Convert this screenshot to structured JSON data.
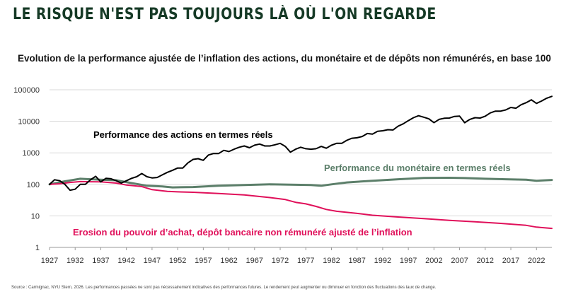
{
  "headline": "LE RISQUE N'EST PAS TOUJOURS LÀ OÙ L'ON REGARDE",
  "subtitle": "Evolution de la performance ajustée de l’inflation des actions, du monétaire et de dépôts non rémunérés, en base 100",
  "source": "Source : Carmignac, NYU Stern, 2026. Les performances passées ne sont pas nécessairement indicatives des performances futures. Le rendement peut augmenter ou diminuer en fonction des fluctuations des taux de change.",
  "chart_data": {
    "type": "line",
    "y_scale": "log",
    "ylim": [
      1,
      100000
    ],
    "y_ticks": [
      "1",
      "10",
      "100",
      "1000",
      "10000",
      "100000"
    ],
    "x_ticks": [
      "1927",
      "1932",
      "1937",
      "1942",
      "1947",
      "1952",
      "1957",
      "1962",
      "1967",
      "1972",
      "1977",
      "1982",
      "1987",
      "1992",
      "1997",
      "2002",
      "2007",
      "2012",
      "2017",
      "2022"
    ],
    "xlim": [
      1927,
      2025
    ],
    "grid": true,
    "series": [
      {
        "name": "Performance des actions en termes réels",
        "color": "#000000",
        "points": [
          [
            1927,
            100
          ],
          [
            1928,
            140
          ],
          [
            1929,
            130
          ],
          [
            1930,
            100
          ],
          [
            1931,
            65
          ],
          [
            1932,
            70
          ],
          [
            1933,
            100
          ],
          [
            1934,
            100
          ],
          [
            1935,
            140
          ],
          [
            1936,
            180
          ],
          [
            1937,
            120
          ],
          [
            1938,
            155
          ],
          [
            1939,
            150
          ],
          [
            1940,
            130
          ],
          [
            1941,
            110
          ],
          [
            1942,
            130
          ],
          [
            1943,
            155
          ],
          [
            1944,
            175
          ],
          [
            1945,
            220
          ],
          [
            1946,
            175
          ],
          [
            1947,
            160
          ],
          [
            1948,
            165
          ],
          [
            1949,
            200
          ],
          [
            1950,
            240
          ],
          [
            1951,
            280
          ],
          [
            1952,
            330
          ],
          [
            1953,
            330
          ],
          [
            1954,
            480
          ],
          [
            1955,
            620
          ],
          [
            1956,
            650
          ],
          [
            1957,
            580
          ],
          [
            1958,
            850
          ],
          [
            1959,
            950
          ],
          [
            1960,
            950
          ],
          [
            1961,
            1200
          ],
          [
            1962,
            1100
          ],
          [
            1963,
            1300
          ],
          [
            1964,
            1500
          ],
          [
            1965,
            1650
          ],
          [
            1966,
            1450
          ],
          [
            1967,
            1750
          ],
          [
            1968,
            1900
          ],
          [
            1969,
            1650
          ],
          [
            1970,
            1650
          ],
          [
            1971,
            1800
          ],
          [
            1972,
            2000
          ],
          [
            1973,
            1600
          ],
          [
            1974,
            1050
          ],
          [
            1975,
            1300
          ],
          [
            1976,
            1500
          ],
          [
            1977,
            1350
          ],
          [
            1978,
            1300
          ],
          [
            1979,
            1350
          ],
          [
            1980,
            1600
          ],
          [
            1981,
            1400
          ],
          [
            1982,
            1750
          ],
          [
            1983,
            2000
          ],
          [
            1984,
            2000
          ],
          [
            1985,
            2500
          ],
          [
            1986,
            2900
          ],
          [
            1987,
            3000
          ],
          [
            1988,
            3300
          ],
          [
            1989,
            4100
          ],
          [
            1990,
            3900
          ],
          [
            1991,
            4800
          ],
          [
            1992,
            5000
          ],
          [
            1993,
            5400
          ],
          [
            1994,
            5300
          ],
          [
            1995,
            7000
          ],
          [
            1996,
            8300
          ],
          [
            1997,
            10500
          ],
          [
            1998,
            13000
          ],
          [
            1999,
            15000
          ],
          [
            2000,
            13500
          ],
          [
            2001,
            12000
          ],
          [
            2002,
            9000
          ],
          [
            2003,
            11500
          ],
          [
            2004,
            12500
          ],
          [
            2005,
            12700
          ],
          [
            2006,
            14300
          ],
          [
            2007,
            14600
          ],
          [
            2008,
            9000
          ],
          [
            2009,
            11500
          ],
          [
            2010,
            13000
          ],
          [
            2011,
            12700
          ],
          [
            2012,
            14500
          ],
          [
            2013,
            18500
          ],
          [
            2014,
            21000
          ],
          [
            2015,
            21000
          ],
          [
            2016,
            23000
          ],
          [
            2017,
            27500
          ],
          [
            2018,
            26000
          ],
          [
            2019,
            33500
          ],
          [
            2020,
            39000
          ],
          [
            2021,
            48000
          ],
          [
            2022,
            37000
          ],
          [
            2023,
            44000
          ],
          [
            2024,
            54000
          ],
          [
            2025,
            62000
          ]
        ]
      },
      {
        "name": "Performance du monétaire en termes réels",
        "color": "#5c7f6a",
        "points": [
          [
            1927,
            100
          ],
          [
            1930,
            125
          ],
          [
            1933,
            150
          ],
          [
            1937,
            140
          ],
          [
            1940,
            135
          ],
          [
            1943,
            110
          ],
          [
            1946,
            90
          ],
          [
            1949,
            86
          ],
          [
            1951,
            80
          ],
          [
            1955,
            82
          ],
          [
            1960,
            90
          ],
          [
            1965,
            95
          ],
          [
            1970,
            100
          ],
          [
            1974,
            98
          ],
          [
            1978,
            95
          ],
          [
            1980,
            90
          ],
          [
            1982,
            100
          ],
          [
            1985,
            115
          ],
          [
            1990,
            130
          ],
          [
            1995,
            145
          ],
          [
            2000,
            160
          ],
          [
            2005,
            162
          ],
          [
            2008,
            158
          ],
          [
            2012,
            150
          ],
          [
            2016,
            145
          ],
          [
            2020,
            140
          ],
          [
            2022,
            130
          ],
          [
            2025,
            138
          ]
        ]
      },
      {
        "name": "Erosion du pouvoir d’achat, dépôt bancaire non rémunéré ajusté de l’inflation",
        "color": "#e0105a",
        "points": [
          [
            1927,
            100
          ],
          [
            1929,
            104
          ],
          [
            1931,
            115
          ],
          [
            1933,
            122
          ],
          [
            1937,
            120
          ],
          [
            1940,
            110
          ],
          [
            1942,
            95
          ],
          [
            1945,
            85
          ],
          [
            1947,
            68
          ],
          [
            1950,
            60
          ],
          [
            1952,
            58
          ],
          [
            1955,
            56
          ],
          [
            1960,
            51
          ],
          [
            1965,
            46
          ],
          [
            1970,
            38
          ],
          [
            1973,
            33
          ],
          [
            1975,
            27
          ],
          [
            1977,
            24
          ],
          [
            1979,
            20
          ],
          [
            1981,
            16
          ],
          [
            1983,
            14
          ],
          [
            1987,
            12
          ],
          [
            1990,
            10.5
          ],
          [
            1995,
            9.2
          ],
          [
            2000,
            8.2
          ],
          [
            2005,
            7.2
          ],
          [
            2010,
            6.5
          ],
          [
            2015,
            5.8
          ],
          [
            2020,
            5.0
          ],
          [
            2022,
            4.4
          ],
          [
            2025,
            4.0
          ]
        ]
      }
    ],
    "labels": [
      "Performance des actions en termes réels",
      "Performance du monétaire en termes réels",
      "Erosion du pouvoir d’achat, dépôt bancaire non rémunéré ajusté de l’inflation"
    ]
  }
}
